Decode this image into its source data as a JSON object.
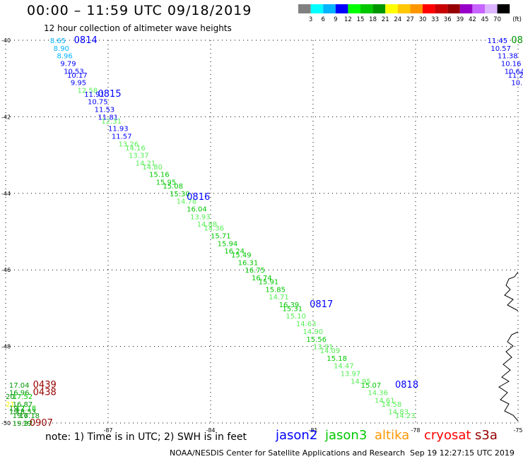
{
  "header": {
    "title": "00:00 – 11:59 UTC 09/18/2019",
    "subtitle": "12 hour collection of altimeter wave heights"
  },
  "legend": {
    "colors": [
      "#808080",
      "#00ffff",
      "#00b4ff",
      "#0000ff",
      "#00ff00",
      "#00c800",
      "#009600",
      "#ffff00",
      "#ffc800",
      "#ff9600",
      "#ff0000",
      "#c80000",
      "#960000",
      "#9600c8",
      "#c864ff",
      "#dcb4ff",
      "#000000"
    ],
    "labels": [
      "3",
      "6",
      "9",
      "12",
      "15",
      "18",
      "21",
      "24",
      "27",
      "30",
      "33",
      "36",
      "39",
      "42",
      "45",
      "70"
    ],
    "unit": "(ft)"
  },
  "axes": {
    "x_ticks": [
      -87,
      -84,
      -81,
      -78,
      -75
    ],
    "y_ticks": [
      -40,
      -42,
      -44,
      -46,
      -48,
      -50
    ],
    "x_labels": [
      "-87",
      "-84",
      "-81",
      "-78",
      "-75"
    ],
    "y_labels": [
      "-40",
      "-42",
      "-44",
      "-46",
      "-48",
      "-50"
    ],
    "x_range": [
      -90,
      -75
    ],
    "y_range": [
      -50,
      -40
    ]
  },
  "passes": {
    "main_track": [
      {
        "lon": -88.7,
        "lat": -40.0,
        "v": "8.65",
        "c": "#00b4ff"
      },
      {
        "lon": -88.6,
        "lat": -40.2,
        "v": "8.90",
        "c": "#00b4ff"
      },
      {
        "lon": -88.5,
        "lat": -40.4,
        "v": "8.96",
        "c": "#00b4ff"
      },
      {
        "lon": -88.4,
        "lat": -40.6,
        "v": "9.79",
        "c": "#0000ff"
      },
      {
        "lon": -88.3,
        "lat": -40.8,
        "v": "10.53",
        "c": "#0000ff"
      },
      {
        "lon": -88.2,
        "lat": -40.9,
        "v": "10.17",
        "c": "#0000ff"
      },
      {
        "lon": -88.1,
        "lat": -41.1,
        "v": "9.95",
        "c": "#0000ff"
      },
      {
        "lon": -87.9,
        "lat": -41.3,
        "v": "12.58",
        "c": "#55ee55"
      },
      {
        "lon": -87.7,
        "lat": -41.4,
        "v": "11.91",
        "c": "#0000ff"
      },
      {
        "lon": -87.6,
        "lat": -41.6,
        "v": "10.75",
        "c": "#0000ff"
      },
      {
        "lon": -87.4,
        "lat": -41.8,
        "v": "11.53",
        "c": "#0000ff"
      },
      {
        "lon": -87.3,
        "lat": -42.0,
        "v": "11.81",
        "c": "#0000ff"
      },
      {
        "lon": -87.2,
        "lat": -42.1,
        "v": "12.31",
        "c": "#55ee55"
      },
      {
        "lon": -87.0,
        "lat": -42.3,
        "v": "11.93",
        "c": "#0000ff"
      },
      {
        "lon": -86.9,
        "lat": -42.5,
        "v": "11.57",
        "c": "#0000ff"
      },
      {
        "lon": -86.7,
        "lat": -42.7,
        "v": "13.26",
        "c": "#55ee55"
      },
      {
        "lon": -86.5,
        "lat": -42.8,
        "v": "14.16",
        "c": "#55ee55"
      },
      {
        "lon": -86.4,
        "lat": -43.0,
        "v": "13.37",
        "c": "#55ee55"
      },
      {
        "lon": -86.2,
        "lat": -43.2,
        "v": "14.21",
        "c": "#55ee55"
      },
      {
        "lon": -86.0,
        "lat": -43.3,
        "v": "14.80",
        "c": "#55ee55"
      },
      {
        "lon": -85.8,
        "lat": -43.5,
        "v": "15.16",
        "c": "#00c800"
      },
      {
        "lon": -85.6,
        "lat": -43.7,
        "v": "15.95",
        "c": "#00c800"
      },
      {
        "lon": -85.4,
        "lat": -43.8,
        "v": "15.08",
        "c": "#00c800"
      },
      {
        "lon": -85.2,
        "lat": -44.0,
        "v": "15.30",
        "c": "#00c800"
      },
      {
        "lon": -85.0,
        "lat": -44.2,
        "v": "14.78",
        "c": "#55ee55"
      },
      {
        "lon": -84.7,
        "lat": -44.4,
        "v": "16.04",
        "c": "#00c800"
      },
      {
        "lon": -84.6,
        "lat": -44.6,
        "v": "13.93",
        "c": "#55ee55"
      },
      {
        "lon": -84.4,
        "lat": -44.8,
        "v": "14.88",
        "c": "#55ee55"
      },
      {
        "lon": -84.2,
        "lat": -44.9,
        "v": "14.36",
        "c": "#55ee55"
      },
      {
        "lon": -84.0,
        "lat": -45.1,
        "v": "15.71",
        "c": "#00c800"
      },
      {
        "lon": -83.8,
        "lat": -45.3,
        "v": "15.94",
        "c": "#00c800"
      },
      {
        "lon": -83.6,
        "lat": -45.5,
        "v": "16.24",
        "c": "#00c800"
      },
      {
        "lon": -83.4,
        "lat": -45.6,
        "v": "15.49",
        "c": "#00c800"
      },
      {
        "lon": -83.2,
        "lat": -45.8,
        "v": "16.31",
        "c": "#00c800"
      },
      {
        "lon": -83.0,
        "lat": -46.0,
        "v": "16.75",
        "c": "#00c800"
      },
      {
        "lon": -82.8,
        "lat": -46.2,
        "v": "16.74",
        "c": "#00c800"
      },
      {
        "lon": -82.6,
        "lat": -46.3,
        "v": "15.91",
        "c": "#00c800"
      },
      {
        "lon": -82.4,
        "lat": -46.5,
        "v": "15.85",
        "c": "#00c800"
      },
      {
        "lon": -82.3,
        "lat": -46.7,
        "v": "14.71",
        "c": "#55ee55"
      },
      {
        "lon": -82.0,
        "lat": -46.9,
        "v": "16.39",
        "c": "#00c800"
      },
      {
        "lon": -81.9,
        "lat": -47.0,
        "v": "15.31",
        "c": "#00c800"
      },
      {
        "lon": -81.8,
        "lat": -47.2,
        "v": "15.10",
        "c": "#55ee55"
      },
      {
        "lon": -81.5,
        "lat": -47.4,
        "v": "14.63",
        "c": "#55ee55"
      },
      {
        "lon": -81.3,
        "lat": -47.6,
        "v": "14.90",
        "c": "#55ee55"
      },
      {
        "lon": -81.2,
        "lat": -47.8,
        "v": "15.56",
        "c": "#00c800"
      },
      {
        "lon": -81.0,
        "lat": -48.0,
        "v": "13.91",
        "c": "#55ee55"
      },
      {
        "lon": -80.8,
        "lat": -48.1,
        "v": "14.09",
        "c": "#55ee55"
      },
      {
        "lon": -80.6,
        "lat": -48.3,
        "v": "15.18",
        "c": "#00c800"
      },
      {
        "lon": -80.4,
        "lat": -48.5,
        "v": "14.47",
        "c": "#55ee55"
      },
      {
        "lon": -80.2,
        "lat": -48.7,
        "v": "13.97",
        "c": "#55ee55"
      },
      {
        "lon": -79.9,
        "lat": -48.9,
        "v": "14.95",
        "c": "#55ee55"
      },
      {
        "lon": -79.6,
        "lat": -49.0,
        "v": "15.07",
        "c": "#00c800"
      },
      {
        "lon": -79.4,
        "lat": -49.2,
        "v": "14.36",
        "c": "#55ee55"
      },
      {
        "lon": -79.2,
        "lat": -49.4,
        "v": "14.61",
        "c": "#55ee55"
      },
      {
        "lon": -79.0,
        "lat": -49.5,
        "v": "14.58",
        "c": "#55ee55"
      },
      {
        "lon": -78.8,
        "lat": -49.7,
        "v": "14.83",
        "c": "#55ee55"
      },
      {
        "lon": -78.6,
        "lat": -49.8,
        "v": "14.23",
        "c": "#55ee55"
      }
    ],
    "main_times": [
      {
        "lon": -88.0,
        "lat": -40.0,
        "t": "0814",
        "c": "#0000ff"
      },
      {
        "lon": -87.3,
        "lat": -41.4,
        "t": "0815",
        "c": "#0000ff"
      },
      {
        "lon": -84.7,
        "lat": -44.1,
        "t": "0816",
        "c": "#0000ff"
      },
      {
        "lon": -81.1,
        "lat": -46.9,
        "t": "0817",
        "c": "#0000ff"
      },
      {
        "lon": -78.6,
        "lat": -49.0,
        "t": "0818",
        "c": "#0000ff"
      }
    ],
    "right_track": [
      {
        "lon": -75.9,
        "lat": -40.0,
        "v": "11.45",
        "c": "#0000ff"
      },
      {
        "lon": -75.8,
        "lat": -40.2,
        "v": "10.57",
        "c": "#0000ff"
      },
      {
        "lon": -75.6,
        "lat": -40.4,
        "v": "11.38",
        "c": "#0000ff"
      },
      {
        "lon": -75.5,
        "lat": -40.6,
        "v": "10.16",
        "c": "#0000ff"
      },
      {
        "lon": -75.4,
        "lat": -40.8,
        "v": "10.64",
        "c": "#0000ff"
      },
      {
        "lon": -75.3,
        "lat": -40.9,
        "v": "11.2",
        "c": "#0000ff"
      },
      {
        "lon": -75.2,
        "lat": -41.1,
        "v": "10.",
        "c": "#0000ff"
      }
    ],
    "right_times": [
      {
        "lon": -75.2,
        "lat": -40.0,
        "t": "08",
        "c": "#009600"
      }
    ],
    "left_track": [
      {
        "lon": -89.9,
        "lat": -49.0,
        "v": "17.04",
        "c": "#009600"
      },
      {
        "lon": -89.9,
        "lat": -49.2,
        "v": "16.96",
        "c": "#009600"
      },
      {
        "lon": -90.0,
        "lat": -49.3,
        "v": "20.",
        "c": "#009600"
      },
      {
        "lon": -89.8,
        "lat": -49.3,
        "v": "17.52",
        "c": "#00c800"
      },
      {
        "lon": -90.0,
        "lat": -49.5,
        "v": "21.",
        "c": "#ffff00"
      },
      {
        "lon": -89.8,
        "lat": -49.5,
        "v": "16.87",
        "c": "#009600"
      },
      {
        "lon": -89.9,
        "lat": -49.6,
        "v": "19.2",
        "c": "#009600"
      },
      {
        "lon": -89.7,
        "lat": -49.6,
        "v": "17.18",
        "c": "#00c800"
      },
      {
        "lon": -89.9,
        "lat": -49.7,
        "v": "19.8",
        "c": "#009600"
      },
      {
        "lon": -89.7,
        "lat": -49.7,
        "v": "18.53",
        "c": "#009600"
      },
      {
        "lon": -89.8,
        "lat": -49.8,
        "v": "19.6",
        "c": "#009600"
      },
      {
        "lon": -89.6,
        "lat": -49.8,
        "v": "17.18",
        "c": "#009600"
      },
      {
        "lon": -89.8,
        "lat": -50.0,
        "v": "19.37",
        "c": "#009600"
      },
      {
        "lon": -89.5,
        "lat": -50.0,
        "v": "19.",
        "c": "#009600"
      }
    ],
    "left_times": [
      {
        "lon": -89.2,
        "lat": -49.0,
        "t": "0439",
        "c": "#960000"
      },
      {
        "lon": -89.2,
        "lat": -49.2,
        "t": "0438",
        "c": "#960000"
      },
      {
        "lon": -89.3,
        "lat": -50.0,
        "t": "0907",
        "c": "#960000"
      }
    ]
  },
  "footer": {
    "note": "note: 1) Time is in UTC; 2) SWH is in feet",
    "missions": [
      {
        "name": "jason2",
        "color": "#0000ff"
      },
      {
        "name": "jason3",
        "color": "#00c800"
      },
      {
        "name": "altika",
        "color": "#ff9600"
      },
      {
        "name": "cryosat",
        "color": "#ff0000"
      },
      {
        "name": "s3a",
        "color": "#960000"
      }
    ],
    "credit": "NOAA/NESDIS Center for Satellite Applications and Research",
    "timestamp": "Sep 19 12:27:15 UTC 2019"
  }
}
